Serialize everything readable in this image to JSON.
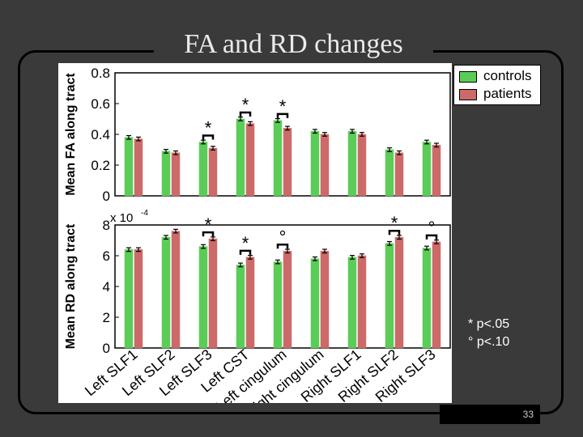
{
  "slide": {
    "title": "FA and RD changes",
    "page_number": "33",
    "notes": [
      "* p<.05",
      "° p<.10"
    ]
  },
  "legend": {
    "controls": "controls",
    "patients": "patients"
  },
  "colors": {
    "controls": "#5ccc58",
    "patients": "#cc6a6a",
    "background": "#3a3a3a"
  },
  "chart_data": [
    {
      "type": "bar",
      "ylabel": "Mean FA along tract",
      "ylim": [
        0,
        0.8
      ],
      "yticks": [
        "0",
        "0.2",
        "0.4",
        "0.6",
        "0.8"
      ],
      "categories": [
        "Left SLF1",
        "Left SLF2",
        "Left SLF3",
        "Left CST",
        "Left cingulum",
        "Right cingulum",
        "Right SLF1",
        "Right SLF2",
        "Right SLF3"
      ],
      "series": [
        {
          "name": "controls",
          "values": [
            0.38,
            0.29,
            0.35,
            0.5,
            0.49,
            0.42,
            0.42,
            0.3,
            0.35
          ]
        },
        {
          "name": "patients",
          "values": [
            0.37,
            0.28,
            0.31,
            0.47,
            0.44,
            0.4,
            0.4,
            0.28,
            0.33
          ]
        }
      ],
      "markers": [
        "",
        "",
        "*",
        "*",
        "*",
        "",
        "",
        "",
        ""
      ]
    },
    {
      "type": "bar",
      "ylabel": "Mean RD along tract",
      "scale_label": "x 10",
      "scale_exponent": "-4",
      "ylim": [
        0,
        8
      ],
      "yticks": [
        "0",
        "2",
        "4",
        "6",
        "8"
      ],
      "categories": [
        "Left SLF1",
        "Left SLF2",
        "Left SLF3",
        "Left CST",
        "Left cingulum",
        "Right cingulum",
        "Right SLF1",
        "Right SLF2",
        "Right SLF3"
      ],
      "series": [
        {
          "name": "controls",
          "values": [
            6.4,
            7.2,
            6.6,
            5.4,
            5.6,
            5.8,
            5.9,
            6.8,
            6.5
          ]
        },
        {
          "name": "patients",
          "values": [
            6.4,
            7.6,
            7.1,
            5.9,
            6.3,
            6.3,
            6.0,
            7.2,
            6.9
          ]
        }
      ],
      "markers": [
        "",
        "",
        "*",
        "*",
        "°",
        "",
        "",
        "*",
        "°"
      ]
    }
  ]
}
